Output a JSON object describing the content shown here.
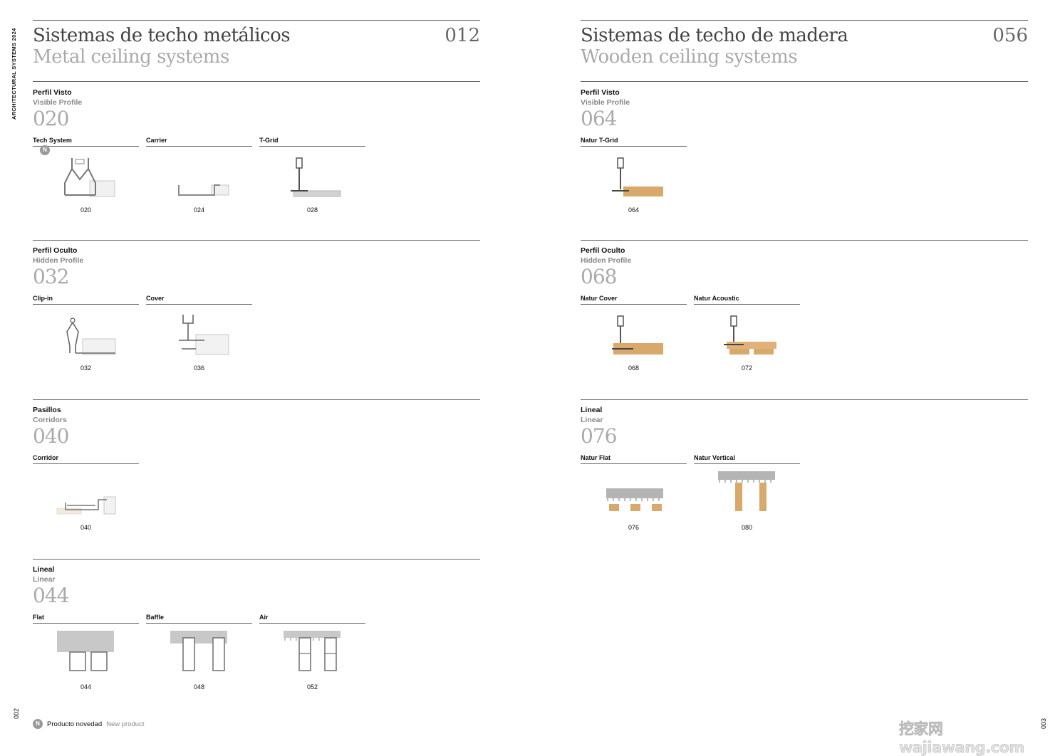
{
  "sidebar": {
    "label": "ARCHITECTURAL SYSTEMS 2024",
    "page_left": "002",
    "page_right": "003"
  },
  "left": {
    "title_es": "Sistemas de techo metálicos",
    "title_en": "Metal ceiling systems",
    "page": "012",
    "sections": [
      {
        "es": "Perfil Visto",
        "en": "Visible Profile",
        "num": "020",
        "items": [
          {
            "name": "Tech System",
            "code": "020",
            "new": "N"
          },
          {
            "name": "Carrier",
            "code": "024"
          },
          {
            "name": "T-Grid",
            "code": "028"
          }
        ]
      },
      {
        "es": "Perfil Oculto",
        "en": "Hidden Profile",
        "num": "032",
        "items": [
          {
            "name": "Clip-in",
            "code": "032"
          },
          {
            "name": "Cover",
            "code": "036"
          }
        ]
      },
      {
        "es": "Pasillos",
        "en": "Corridors",
        "num": "040",
        "items": [
          {
            "name": "Corridor",
            "code": "040"
          }
        ]
      },
      {
        "es": "Lineal",
        "en": "Linear",
        "num": "044",
        "items": [
          {
            "name": "Flat",
            "code": "044"
          },
          {
            "name": "Baffle",
            "code": "048"
          },
          {
            "name": "Air",
            "code": "052"
          }
        ]
      }
    ]
  },
  "right": {
    "title_es": "Sistemas de techo de madera",
    "title_en": "Wooden ceiling systems",
    "page": "056",
    "sections": [
      {
        "es": "Perfil Visto",
        "en": "Visible Profile",
        "num": "064",
        "items": [
          {
            "name": "Natur T-Grid",
            "code": "064"
          }
        ]
      },
      {
        "es": "Perfil Oculto",
        "en": "Hidden Profile",
        "num": "068",
        "items": [
          {
            "name": "Natur Cover",
            "code": "068"
          },
          {
            "name": "Natur Acoustic",
            "code": "072"
          }
        ]
      },
      {
        "es": "Lineal",
        "en": "Linear",
        "num": "076",
        "items": [
          {
            "name": "Natur Flat",
            "code": "076"
          },
          {
            "name": "Natur Vertical",
            "code": "080"
          }
        ]
      }
    ]
  },
  "footer": {
    "badge": "N",
    "es": "Producto novedad",
    "en": "New product"
  },
  "watermark": "挖家网 wajiawang.com",
  "colors": {
    "rule": "#666666",
    "muted": "#aaaaaa",
    "wood": "#d9a86b",
    "metal": "#b4b4b4"
  }
}
